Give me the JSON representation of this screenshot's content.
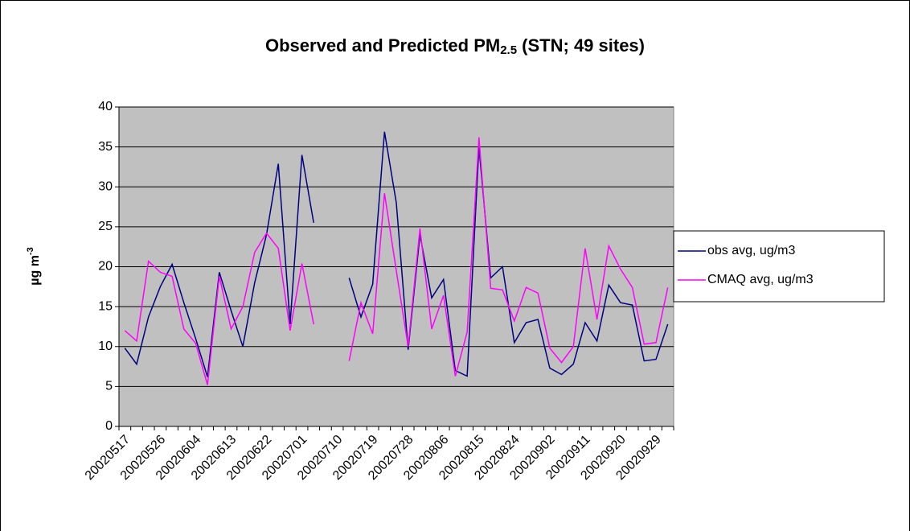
{
  "chart_data": {
    "type": "line",
    "title": {
      "main": "Observed and Predicted PM",
      "sub": "2.5",
      "rest": " (STN; 49 sites)"
    },
    "y_label": {
      "main": "µg m",
      "sup": "-3"
    },
    "categories": [
      "20020517",
      null,
      null,
      "20020526",
      null,
      null,
      "20020604",
      null,
      null,
      "20020613",
      null,
      null,
      "20020622",
      null,
      null,
      "20020701",
      null,
      null,
      "20020710",
      null,
      null,
      "20020719",
      null,
      null,
      "20020728",
      null,
      null,
      "20020806",
      null,
      null,
      "20020815",
      null,
      null,
      "20020824",
      null,
      null,
      "20020902",
      null,
      null,
      "20020911",
      null,
      null,
      "20020920",
      null,
      null,
      "20020929",
      null
    ],
    "series": [
      {
        "name": "obs avg, ug/m3",
        "color": "#000080",
        "values": [
          9.8,
          7.8,
          13.7,
          17.5,
          20.3,
          15.5,
          11,
          6.2,
          19.3,
          14.5,
          10,
          18,
          24,
          32.9,
          12.8,
          34,
          25.5,
          null,
          null,
          18.6,
          13.7,
          17.8,
          36.9,
          28,
          9.6,
          24,
          16.1,
          18.4,
          7,
          6.3,
          35,
          18.6,
          20,
          10.5,
          13,
          13.4,
          7.3,
          6.5,
          7.8,
          13,
          10.7,
          17.7,
          15.5,
          15.2,
          8.2,
          8.4,
          12.8
        ]
      },
      {
        "name": "CMAQ avg, ug/m3",
        "color": "#ff00ff",
        "values": [
          12,
          10.7,
          20.7,
          19.3,
          18.8,
          12.2,
          10.4,
          5.2,
          18.8,
          12.2,
          15,
          21.8,
          24.2,
          22.3,
          12,
          20.4,
          12.8,
          null,
          null,
          8.2,
          15.5,
          11.6,
          29.2,
          19.5,
          10,
          24.8,
          12.2,
          16.4,
          6.3,
          11.8,
          36.2,
          17.3,
          17.1,
          13.2,
          17.4,
          16.7,
          9.8,
          8,
          10,
          22.3,
          13.4,
          22.6,
          19.7,
          17.4,
          10.3,
          10.5,
          17.4
        ]
      }
    ],
    "ylim": [
      0,
      40
    ],
    "yticks": [
      0,
      5,
      10,
      15,
      20,
      25,
      30,
      35,
      40
    ],
    "grid": true,
    "plot_background": "#c0c0c0",
    "legend": "right"
  }
}
